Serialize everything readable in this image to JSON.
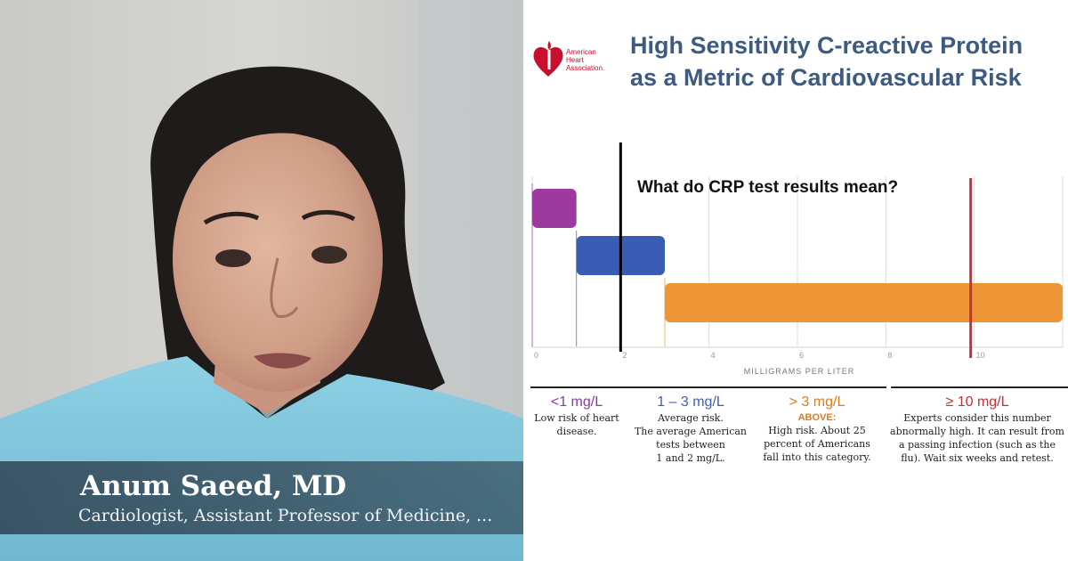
{
  "video": {
    "speaker_name": "Anum Saeed, MD",
    "speaker_title": "Cardiologist, Assistant Professor of Medicine, ..."
  },
  "slide": {
    "logo_lines": [
      "American",
      "Heart",
      "Association."
    ],
    "title_lines": [
      "High Sensitivity C-reactive Protein",
      "as a Metric of Cardiovascular Risk"
    ],
    "question": "What do CRP test results mean?",
    "legend": [
      {
        "heading": "<1 mg/L",
        "color": "#8b3aa6",
        "above_label": "",
        "lines": [
          "Low risk of heart",
          "disease."
        ]
      },
      {
        "heading": "1 – 3 mg/L",
        "color": "#3f5fb5",
        "above_label": "",
        "lines": [
          "Average risk.",
          "The average American",
          "tests between",
          "1 and 2 mg/L."
        ]
      },
      {
        "heading": "> 3 mg/L",
        "color": "#e07a1f",
        "above_label": "ABOVE:",
        "lines": [
          "High risk. About 25",
          "percent of Americans",
          "fall into this category."
        ]
      },
      {
        "heading": "≥ 10 mg/L",
        "color": "#c0323c",
        "above_label": "",
        "lines": [
          "Experts consider this number",
          "abnormally high. It can result from",
          "a passing infection (such as the",
          "flu). Wait six weeks and retest."
        ]
      }
    ]
  },
  "chart_data": {
    "type": "bar",
    "title": "",
    "xlabel": "MILLIGRAMS PER LITER",
    "ylabel": "",
    "xlim": [
      0,
      12
    ],
    "x_ticks": [
      "0",
      "2",
      "4",
      "6",
      "8",
      "10"
    ],
    "tick_values": [
      0,
      2,
      4,
      6,
      8,
      10
    ],
    "bars": [
      {
        "label": "<1 mg/L",
        "start": 0,
        "end": 1,
        "color": "#9e3a9f"
      },
      {
        "label": "1 – 3 mg/L",
        "start": 1,
        "end": 3,
        "color": "#3a5cb4"
      },
      {
        "label": "> 3 mg/L",
        "start": 3,
        "end": 12,
        "color": "#ee9636"
      }
    ],
    "reference_lines": [
      {
        "value": 2,
        "color": "#000000"
      },
      {
        "value": 10,
        "color": "#c0323c"
      }
    ],
    "grid": true
  },
  "colors": {
    "title": "#3d5a80",
    "aha_red": "#c8102e"
  }
}
